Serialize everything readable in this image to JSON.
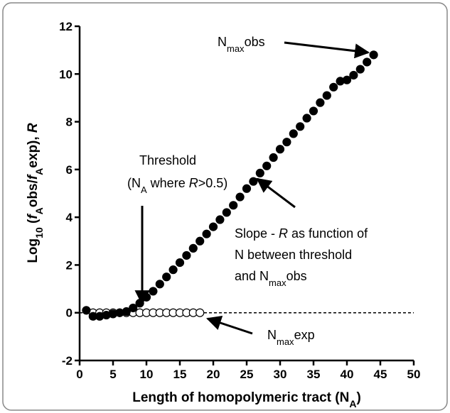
{
  "chart_data": {
    "type": "scatter",
    "xlabel": [
      "Length of homopolymeric tract (N",
      "A",
      ")"
    ],
    "ylabel": [
      "Log",
      "10",
      " (",
      "f",
      "A",
      "obs/",
      "f",
      "A",
      "exp), ",
      "R"
    ],
    "xlim": [
      0,
      50
    ],
    "xticks": [
      0,
      5,
      10,
      15,
      20,
      25,
      30,
      35,
      40,
      45,
      50
    ],
    "ylim": [
      -2,
      12
    ],
    "yticks": [
      -2,
      0,
      2,
      4,
      6,
      8,
      10,
      12
    ],
    "reference_line": 0,
    "series": [
      {
        "marker": "filled",
        "color": "#000000",
        "x": [
          1,
          2,
          3,
          4,
          5,
          6,
          7,
          8,
          9,
          10,
          11,
          12,
          13,
          14,
          15,
          16,
          17,
          18,
          19,
          20,
          21,
          22,
          23,
          24,
          25,
          26,
          27,
          28,
          29,
          30,
          31,
          32,
          33,
          34,
          35,
          36,
          37,
          38,
          39,
          40,
          41,
          42,
          43,
          44
        ],
        "values": [
          0.1,
          -0.15,
          -0.15,
          -0.1,
          -0.05,
          0,
          0.05,
          0.2,
          0.4,
          0.65,
          0.9,
          1.2,
          1.5,
          1.8,
          2.1,
          2.4,
          2.7,
          3.0,
          3.3,
          3.6,
          3.9,
          4.2,
          4.5,
          4.85,
          5.2,
          5.5,
          5.85,
          6.15,
          6.5,
          6.85,
          7.15,
          7.5,
          7.8,
          8.15,
          8.45,
          8.8,
          9.1,
          9.45,
          9.7,
          9.75,
          9.95,
          10.2,
          10.5,
          10.8
        ]
      },
      {
        "marker": "open",
        "color": "#000000",
        "x": [
          2,
          3,
          4,
          5,
          6,
          7,
          8,
          9,
          10,
          11,
          12,
          13,
          14,
          15,
          16,
          17,
          18
        ],
        "values": [
          0,
          0,
          0,
          0,
          0,
          0,
          0,
          0,
          0,
          0,
          0,
          0,
          0,
          0,
          0,
          0,
          0
        ]
      }
    ],
    "annotations": {
      "nmax_obs": [
        "N",
        "max",
        "obs"
      ],
      "threshold": "Threshold",
      "threshold_def": [
        "(N",
        "A",
        " where ",
        "R",
        ">0.5)"
      ],
      "slope_1": [
        "Slope - ",
        "R",
        " as function of"
      ],
      "slope_2": "N between threshold",
      "slope_3": [
        "and N",
        "max",
        "obs"
      ],
      "nmax_exp": [
        "N",
        "max",
        "exp"
      ]
    }
  }
}
